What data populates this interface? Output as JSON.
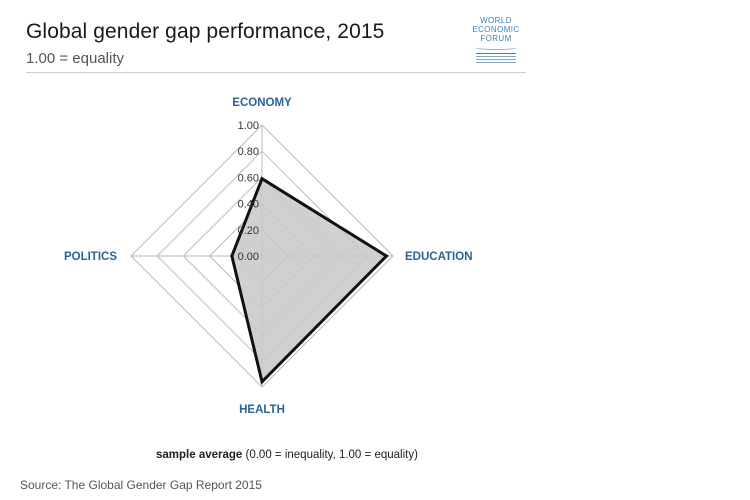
{
  "header": {
    "title": "Global gender gap performance, 2015",
    "subtitle": "1.00 = equality"
  },
  "logo": {
    "line1": "WORLD",
    "line2": "ECONOMIC",
    "line3": "FORUM"
  },
  "chart_data": {
    "type": "radar",
    "title": "Global gender gap performance, 2015",
    "subtitle": "1.00 = equality",
    "axes": [
      "ECONOMY",
      "EDUCATION",
      "HEALTH",
      "POLITICS"
    ],
    "ticks": [
      "1.00",
      "0.80",
      "0.60",
      "0.40",
      "0.20",
      "0.00"
    ],
    "range": [
      0,
      1
    ],
    "grid": true,
    "series": [
      {
        "values": [
          0.59,
          0.95,
          0.96,
          0.23
        ]
      }
    ],
    "colors": {
      "fill": "#c8c8c8",
      "stroke": "#111111",
      "grid": "#bbbbbb",
      "axis_label": "#2a6496"
    }
  },
  "legend": {
    "bold": "sample average",
    "rest": " (0.00 = inequality, 1.00 = equality)"
  },
  "footer": {
    "source": "Source: The Global Gender Gap Report 2015"
  }
}
